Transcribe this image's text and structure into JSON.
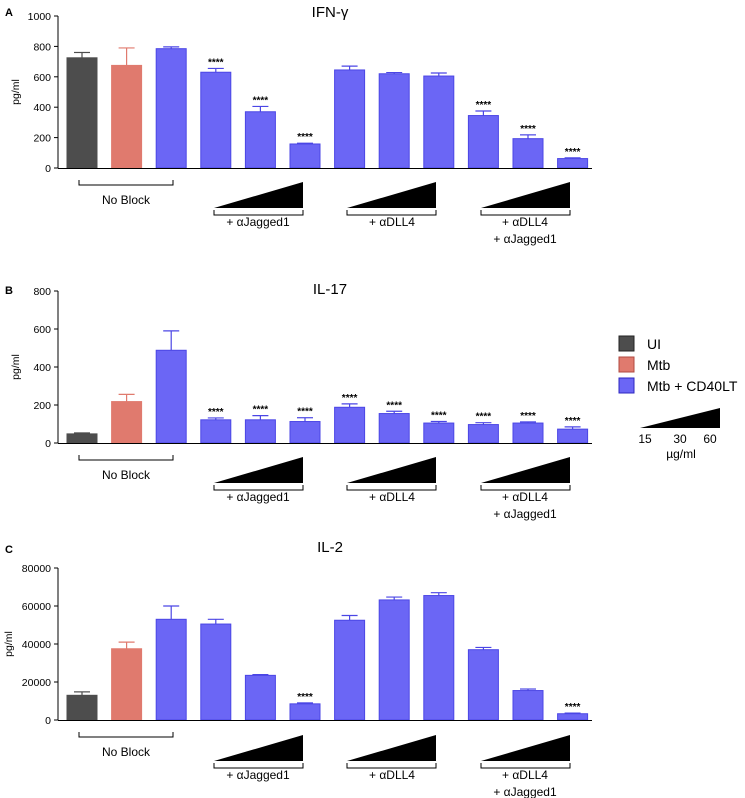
{
  "chart_data": [
    {
      "type": "bar",
      "panel": "A",
      "title": "IFN-γ",
      "ylabel": "pg/ml",
      "ylim": [
        0,
        1000
      ],
      "yticks": [
        0,
        200,
        400,
        600,
        800,
        1000
      ],
      "values": [
        725,
        675,
        785,
        630,
        370,
        158,
        645,
        620,
        605,
        345,
        193,
        62
      ],
      "errors": [
        35,
        115,
        12,
        25,
        35,
        5,
        25,
        8,
        20,
        30,
        25,
        5
      ],
      "stars": [
        "",
        "",
        "",
        "****",
        "****",
        "****",
        "",
        "",
        "",
        "****",
        "****",
        "****"
      ]
    },
    {
      "type": "bar",
      "panel": "B",
      "title": "IL-17",
      "ylabel": "pg/ml",
      "ylim": [
        0,
        800
      ],
      "yticks": [
        0,
        200,
        400,
        600,
        800
      ],
      "values": [
        48,
        218,
        488,
        122,
        122,
        113,
        188,
        155,
        105,
        97,
        105,
        73
      ],
      "errors": [
        5,
        38,
        102,
        10,
        22,
        20,
        18,
        12,
        8,
        10,
        6,
        12
      ],
      "stars": [
        "",
        "",
        "",
        "****",
        "****",
        "****",
        "****",
        "****",
        "****",
        "****",
        "****",
        "****"
      ]
    },
    {
      "type": "bar",
      "panel": "C",
      "title": "IL-2",
      "ylabel": "pg/ml",
      "ylim": [
        0,
        80000
      ],
      "yticks": [
        0,
        20000,
        40000,
        60000,
        80000
      ],
      "values": [
        13000,
        37500,
        53000,
        50500,
        23500,
        8500,
        52500,
        63200,
        65500,
        37000,
        15500,
        3300
      ],
      "errors": [
        1800,
        3500,
        7000,
        2500,
        400,
        500,
        2500,
        1500,
        1500,
        1200,
        800,
        300
      ],
      "stars": [
        "",
        "",
        "",
        "",
        "",
        "****",
        "",
        "",
        "",
        "",
        "",
        "****"
      ]
    }
  ],
  "groups": {
    "no_block": "No Block",
    "jagged": "+ αJagged1",
    "dll4": "+ αDLL4",
    "combo_line1": "+ αDLL4",
    "combo_line2": "+ αJagged1"
  },
  "legend": {
    "items": [
      {
        "label": "UI",
        "color": "#4d4d4d"
      },
      {
        "label": "Mtb",
        "color": "#e07a6e"
      },
      {
        "label": "Mtb + CD40LT",
        "color": "#6b66f5"
      }
    ],
    "conc_ticks": [
      "15",
      "30",
      "60"
    ],
    "conc_unit": "µg/ml"
  },
  "colors": {
    "bar_colors": [
      "#4d4d4d",
      "#e07a6e",
      "#6b66f5",
      "#6b66f5",
      "#6b66f5",
      "#6b66f5",
      "#6b66f5",
      "#6b66f5",
      "#6b66f5",
      "#6b66f5",
      "#6b66f5",
      "#6b66f5"
    ],
    "error_colors": [
      "#4d4d4d",
      "#e07a6e",
      "#4b46e5",
      "#4b46e5",
      "#4b46e5",
      "#4b46e5",
      "#4b46e5",
      "#4b46e5",
      "#4b46e5",
      "#4b46e5",
      "#4b46e5",
      "#4b46e5"
    ]
  }
}
